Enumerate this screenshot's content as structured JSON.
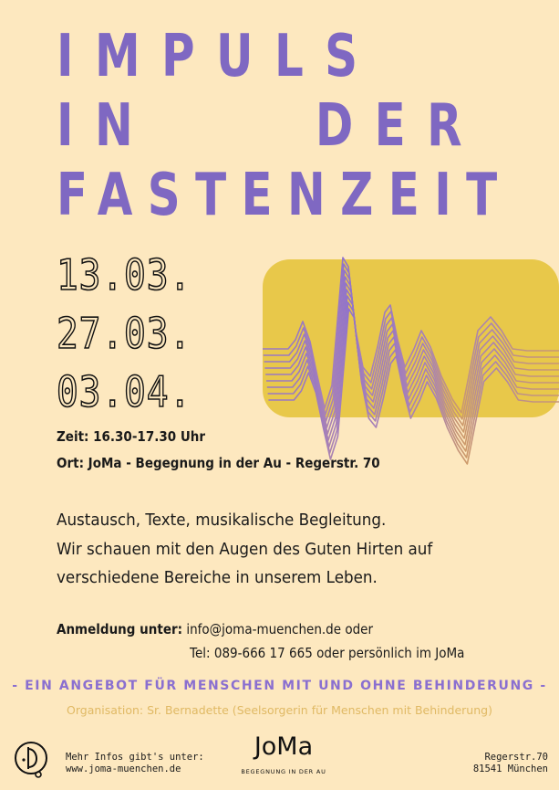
{
  "title": {
    "line1": "IMPULS",
    "line2_left": "IN",
    "line2_right": "DER",
    "line3": "FASTENZEIT"
  },
  "dates": [
    "13.03.",
    "27.03.",
    "03.04."
  ],
  "details": {
    "time": "Zeit: 16.30-17.30 Uhr",
    "place": "Ort: JoMa - Begegnung in der Au - Regerstr. 70"
  },
  "description": [
    "Austausch, Texte, musikalische Begleitung.",
    "Wir schauen mit den Augen des Guten Hirten auf",
    "verschiedene Bereiche in unserem Leben."
  ],
  "registration": {
    "label": "Anmeldung unter:",
    "email": " info@joma-muenchen.de oder",
    "phone": "Tel: 089-666 17 665 oder persönlich im JoMa"
  },
  "offer": "- EIN ANGEBOT FÜR MENSCHEN MIT UND OHNE BEHINDERUNG -",
  "organisation": "Organisation: Sr. Bernadette (Seelsorgerin für Menschen mit Behinderung)",
  "footer": {
    "more_info_label": "Mehr Infos gibt's unter:",
    "website": "www.joma-muenchen.de",
    "brand": "JoMa",
    "brand_tagline": "BEGEGNUNG IN DER AU",
    "address_street": "Regerstr.70",
    "address_city": "81541 München"
  },
  "colors": {
    "background": "#fde8bf",
    "title": "#7f68c2",
    "accent_block": "#e8c84a",
    "offer_text": "#8a6fd0",
    "organisation_text": "#e0b964"
  },
  "icons": {
    "left_logo": "joma-circle-logo-icon",
    "wave": "sound-wave-graphic"
  }
}
